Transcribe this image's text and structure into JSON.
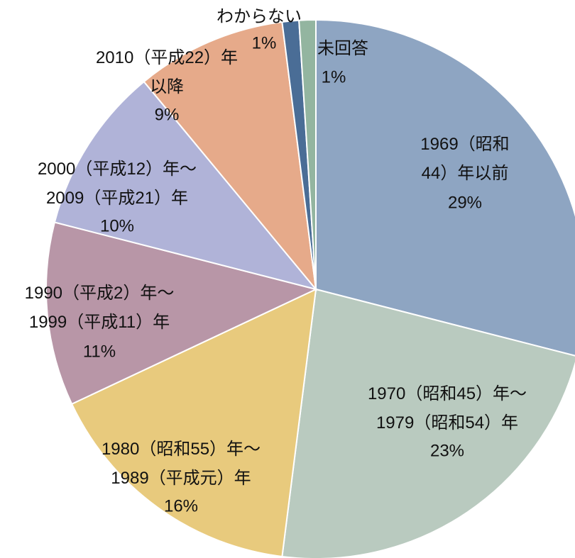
{
  "chart_data": {
    "type": "pie",
    "categories": [
      "1969（昭和\n44）年以前",
      "1970（昭和45）年～\n1979（昭和54）年",
      "1980（昭和55）年～\n1989（平成元）年",
      "1990（平成2）年～\n1999（平成11）年",
      "2000（平成12）年～\n2009（平成21）年",
      "2010（平成22）年\n以降",
      "わからない",
      "未回答"
    ],
    "values": [
      29,
      23,
      16,
      11,
      10,
      9,
      1,
      1
    ],
    "value_labels": [
      "29%",
      "23%",
      "16%",
      "11%",
      "10%",
      "9%",
      "1%",
      "1%"
    ],
    "colors": [
      "#8ea5c2",
      "#b9cabf",
      "#e8ca7d",
      "#b896a7",
      "#b0b3d8",
      "#e6aa8a",
      "#4a6d96",
      "#93b5a0"
    ]
  }
}
